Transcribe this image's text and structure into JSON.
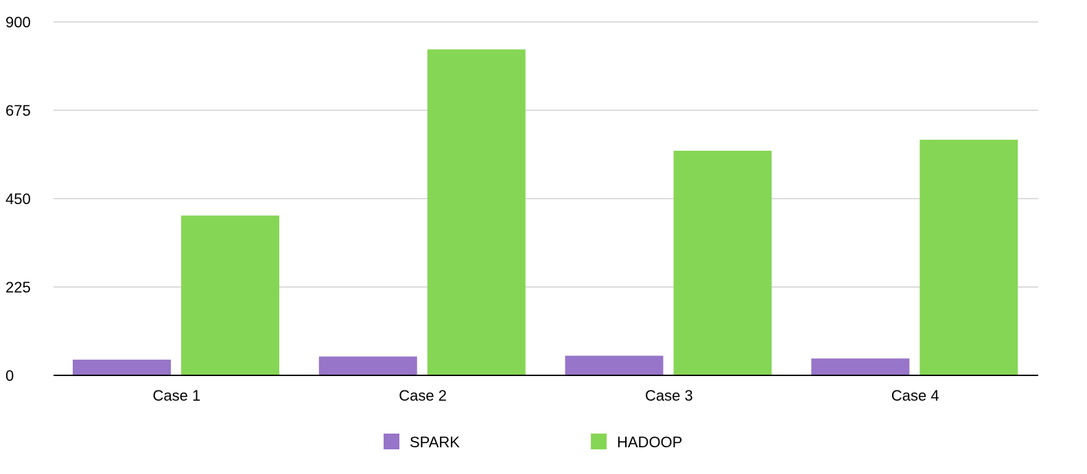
{
  "chart_data": {
    "type": "bar",
    "categories": [
      "Case 1",
      "Case 2",
      "Case 3",
      "Case 4"
    ],
    "series": [
      {
        "name": "SPARK",
        "values": [
          40,
          48,
          50,
          43
        ],
        "color": "#9775c8"
      },
      {
        "name": "HADOOP",
        "values": [
          407,
          830,
          572,
          600
        ],
        "color": "#86d655"
      }
    ],
    "yticks": [
      "0",
      "225",
      "450",
      "675",
      "900"
    ],
    "ylim": [
      0,
      900
    ],
    "title": "",
    "xlabel": "",
    "ylabel": "",
    "grid": true,
    "legend_position": "bottom"
  }
}
